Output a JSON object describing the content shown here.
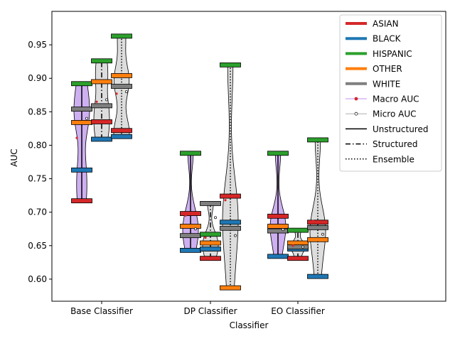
{
  "chart_data": {
    "type": "violin",
    "xlabel": "Classifier",
    "ylabel": "AUC",
    "ylim": [
      0.567,
      1.0
    ],
    "yticks": [
      0.6,
      0.65,
      0.7,
      0.75,
      0.8,
      0.85,
      0.9,
      0.95
    ],
    "ytick_labels": [
      "0.60",
      "0.65",
      "0.70",
      "0.75",
      "0.80",
      "0.85",
      "0.90",
      "0.95"
    ],
    "categories": [
      "Base Classifier",
      "DP Classifier",
      "EO Classifier"
    ],
    "groups": [
      "ASIAN",
      "BLACK",
      "HISPANIC",
      "OTHER",
      "WHITE"
    ],
    "group_colors": {
      "ASIAN": "#d62728",
      "BLACK": "#1f77b4",
      "HISPANIC": "#2ca02c",
      "OTHER": "#ff7f0e",
      "WHITE": "#7f7f7f"
    },
    "variants": [
      "Unstructured",
      "Structured",
      "Ensemble"
    ],
    "legend": {
      "placement": "top-right",
      "entries": [
        {
          "label": "ASIAN",
          "kind": "thick",
          "color": "#d62728"
        },
        {
          "label": "BLACK",
          "kind": "thick",
          "color": "#1f77b4"
        },
        {
          "label": "HISPANIC",
          "kind": "thick",
          "color": "#2ca02c"
        },
        {
          "label": "OTHER",
          "kind": "thick",
          "color": "#ff7f0e"
        },
        {
          "label": "WHITE",
          "kind": "thick",
          "color": "#7f7f7f"
        },
        {
          "label": "Macro AUC",
          "kind": "marker",
          "color": "#d8b4f8",
          "marker": "#d62728"
        },
        {
          "label": "Micro AUC",
          "kind": "marker",
          "color": "#c8c8c8",
          "marker": "#222222"
        },
        {
          "label": "Unstructured",
          "kind": "line",
          "dash": "solid"
        },
        {
          "label": "Structured",
          "kind": "line",
          "dash": "dashdot"
        },
        {
          "label": "Ensemble",
          "kind": "line",
          "dash": "dotted"
        }
      ]
    },
    "series": [
      {
        "classifier": "Base Classifier",
        "variant": "Unstructured",
        "values": {
          "ASIAN": 0.717,
          "BLACK": 0.763,
          "HISPANIC": 0.892,
          "OTHER": 0.834,
          "WHITE": 0.854
        },
        "macro_auc": 0.811,
        "micro_auc": 0.84
      },
      {
        "classifier": "Base Classifier",
        "variant": "Structured",
        "values": {
          "ASIAN": 0.835,
          "BLACK": 0.809,
          "HISPANIC": 0.926,
          "OTHER": 0.895,
          "WHITE": 0.859
        },
        "macro_auc": 0.865,
        "micro_auc": 0.868
      },
      {
        "classifier": "Base Classifier",
        "variant": "Ensemble",
        "values": {
          "ASIAN": 0.822,
          "BLACK": 0.813,
          "HISPANIC": 0.963,
          "OTHER": 0.904,
          "WHITE": 0.888
        },
        "macro_auc": 0.877,
        "micro_auc": 0.88
      },
      {
        "classifier": "DP Classifier",
        "variant": "Unstructured",
        "values": {
          "ASIAN": 0.698,
          "BLACK": 0.643,
          "HISPANIC": 0.788,
          "OTHER": 0.679,
          "WHITE": 0.665
        },
        "macro_auc": 0.695,
        "micro_auc": 0.675
      },
      {
        "classifier": "DP Classifier",
        "variant": "Structured",
        "values": {
          "ASIAN": 0.631,
          "BLACK": 0.645,
          "HISPANIC": 0.667,
          "OTHER": 0.654,
          "WHITE": 0.713
        },
        "macro_auc": 0.662,
        "micro_auc": 0.692
      },
      {
        "classifier": "DP Classifier",
        "variant": "Ensemble",
        "values": {
          "ASIAN": 0.724,
          "BLACK": 0.685,
          "HISPANIC": 0.92,
          "OTHER": 0.587,
          "WHITE": 0.676
        },
        "macro_auc": 0.718,
        "micro_auc": 0.665
      },
      {
        "classifier": "EO Classifier",
        "variant": "Unstructured",
        "values": {
          "ASIAN": 0.694,
          "BLACK": 0.634,
          "HISPANIC": 0.788,
          "OTHER": 0.679,
          "WHITE": 0.672
        },
        "macro_auc": 0.693,
        "micro_auc": 0.674
      },
      {
        "classifier": "EO Classifier",
        "variant": "Structured",
        "values": {
          "ASIAN": 0.631,
          "BLACK": 0.645,
          "HISPANIC": 0.673,
          "OTHER": 0.654,
          "WHITE": 0.648
        },
        "macro_auc": 0.65,
        "micro_auc": 0.648
      },
      {
        "classifier": "EO Classifier",
        "variant": "Ensemble",
        "values": {
          "ASIAN": 0.685,
          "BLACK": 0.604,
          "HISPANIC": 0.808,
          "OTHER": 0.659,
          "WHITE": 0.677
        },
        "macro_auc": 0.687,
        "micro_auc": 0.667
      }
    ]
  }
}
